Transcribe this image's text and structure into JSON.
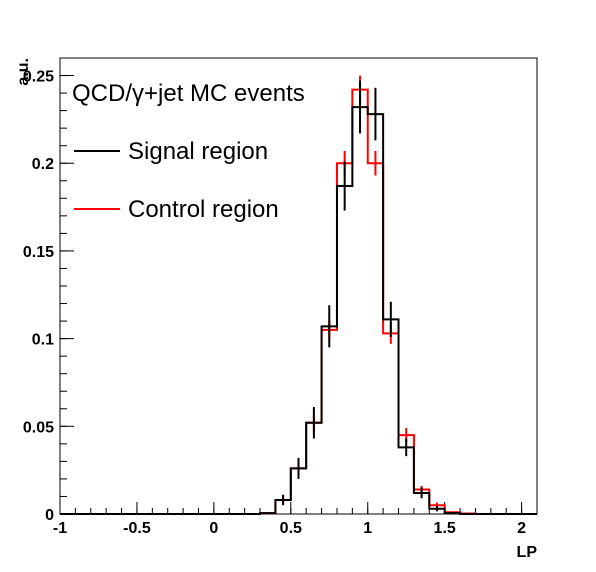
{
  "chart_data": {
    "type": "histogram",
    "xlabel": "LP",
    "ylabel": "a.u.",
    "xlim": [
      -1,
      2.1
    ],
    "ylim": [
      0,
      0.26
    ],
    "bin_width": 0.1,
    "x_ticks": [
      {
        "value": -1,
        "label": "-1"
      },
      {
        "value": -0.5,
        "label": "-0.5"
      },
      {
        "value": 0,
        "label": "0"
      },
      {
        "value": 0.5,
        "label": "0.5"
      },
      {
        "value": 1,
        "label": "1"
      },
      {
        "value": 1.5,
        "label": "1.5"
      },
      {
        "value": 2,
        "label": "2"
      }
    ],
    "y_ticks": [
      {
        "value": 0,
        "label": "0"
      },
      {
        "value": 0.05,
        "label": "0.05"
      },
      {
        "value": 0.1,
        "label": "0.1"
      },
      {
        "value": 0.15,
        "label": "0.15"
      },
      {
        "value": 0.2,
        "label": "0.2"
      },
      {
        "value": 0.25,
        "label": "0.25"
      }
    ],
    "legend": {
      "header": "QCD/γ+jet MC events",
      "placement": "top-left",
      "entries": [
        "Signal region",
        "Control region"
      ]
    },
    "series": [
      {
        "name": "Control region",
        "color": "#ff0000",
        "bins": [
          {
            "low": 0.3,
            "high": 0.4,
            "value": 0.0005,
            "err": 0.0005
          },
          {
            "low": 0.4,
            "high": 0.5,
            "value": 0.008,
            "err": 0.002
          },
          {
            "low": 0.5,
            "high": 0.6,
            "value": 0.026,
            "err": 0.004
          },
          {
            "low": 0.6,
            "high": 0.7,
            "value": 0.052,
            "err": 0.005
          },
          {
            "low": 0.7,
            "high": 0.8,
            "value": 0.105,
            "err": 0.006
          },
          {
            "low": 0.8,
            "high": 0.9,
            "value": 0.2,
            "err": 0.007
          },
          {
            "low": 0.9,
            "high": 1.0,
            "value": 0.242,
            "err": 0.008
          },
          {
            "low": 1.0,
            "high": 1.1,
            "value": 0.2,
            "err": 0.007
          },
          {
            "low": 1.1,
            "high": 1.2,
            "value": 0.103,
            "err": 0.006
          },
          {
            "low": 1.2,
            "high": 1.3,
            "value": 0.045,
            "err": 0.004
          },
          {
            "low": 1.3,
            "high": 1.4,
            "value": 0.014,
            "err": 0.002
          },
          {
            "low": 1.4,
            "high": 1.5,
            "value": 0.005,
            "err": 0.0015
          },
          {
            "low": 1.5,
            "high": 1.6,
            "value": 0.001,
            "err": 0.0005
          },
          {
            "low": 1.6,
            "high": 1.7,
            "value": 0.0003,
            "err": 0.0003
          }
        ]
      },
      {
        "name": "Signal region",
        "color": "#000000",
        "bins": [
          {
            "low": 0.3,
            "high": 0.4,
            "value": 0.0005,
            "err": 0.0005
          },
          {
            "low": 0.4,
            "high": 0.5,
            "value": 0.008,
            "err": 0.003
          },
          {
            "low": 0.5,
            "high": 0.6,
            "value": 0.026,
            "err": 0.006
          },
          {
            "low": 0.6,
            "high": 0.7,
            "value": 0.052,
            "err": 0.009
          },
          {
            "low": 0.7,
            "high": 0.8,
            "value": 0.107,
            "err": 0.012
          },
          {
            "low": 0.8,
            "high": 0.9,
            "value": 0.187,
            "err": 0.014
          },
          {
            "low": 0.9,
            "high": 1.0,
            "value": 0.232,
            "err": 0.015
          },
          {
            "low": 1.0,
            "high": 1.1,
            "value": 0.228,
            "err": 0.015
          },
          {
            "low": 1.1,
            "high": 1.2,
            "value": 0.111,
            "err": 0.01
          },
          {
            "low": 1.2,
            "high": 1.3,
            "value": 0.038,
            "err": 0.005
          },
          {
            "low": 1.3,
            "high": 1.4,
            "value": 0.012,
            "err": 0.003
          },
          {
            "low": 1.4,
            "high": 1.5,
            "value": 0.003,
            "err": 0.0015
          },
          {
            "low": 1.5,
            "high": 1.6,
            "value": 0.0005,
            "err": 0.0005
          }
        ]
      }
    ]
  }
}
